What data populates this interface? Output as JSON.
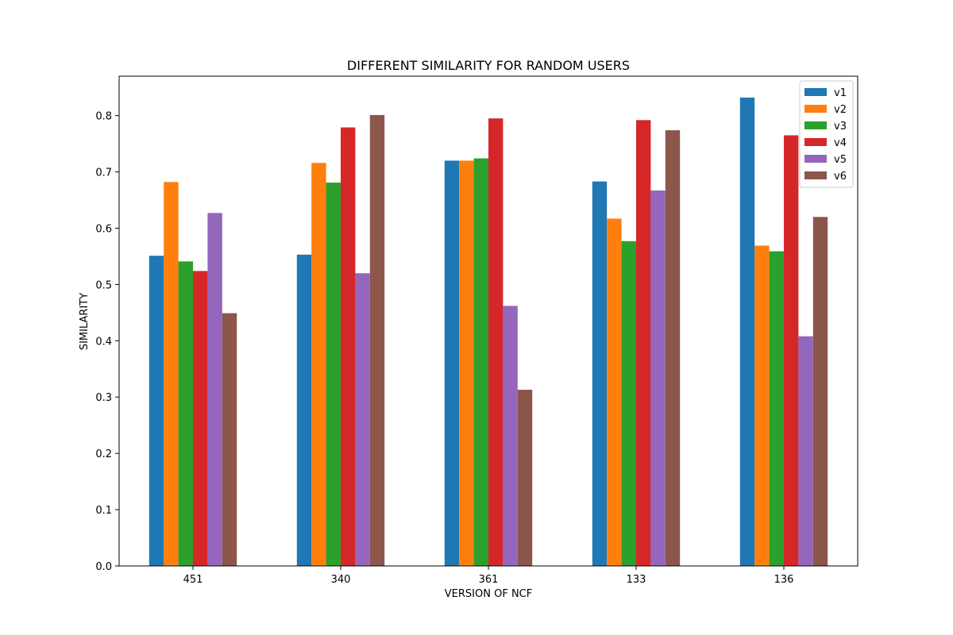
{
  "chart_data": {
    "type": "bar",
    "title": "DIFFERENT SIMILARITY FOR RANDOM USERS",
    "xlabel": "VERSION OF NCF",
    "ylabel": "SIMILARITY",
    "categories": [
      "451",
      "340",
      "361",
      "133",
      "136"
    ],
    "ylim": [
      0,
      0.87
    ],
    "yticks": [
      0.0,
      0.1,
      0.2,
      0.3,
      0.4,
      0.5,
      0.6,
      0.7,
      0.8
    ],
    "grid": false,
    "legend_position": "top-right",
    "series": [
      {
        "name": "v1",
        "color": "#1f77b4",
        "values": [
          0.551,
          0.553,
          0.72,
          0.683,
          0.832
        ]
      },
      {
        "name": "v2",
        "color": "#ff7f0e",
        "values": [
          0.682,
          0.716,
          0.72,
          0.617,
          0.569
        ]
      },
      {
        "name": "v3",
        "color": "#2ca02c",
        "values": [
          0.541,
          0.681,
          0.724,
          0.577,
          0.559
        ]
      },
      {
        "name": "v4",
        "color": "#d62728",
        "values": [
          0.524,
          0.779,
          0.795,
          0.792,
          0.765
        ]
      },
      {
        "name": "v5",
        "color": "#9467bd",
        "values": [
          0.627,
          0.52,
          0.462,
          0.667,
          0.408
        ]
      },
      {
        "name": "v6",
        "color": "#8c564b",
        "values": [
          0.449,
          0.801,
          0.313,
          0.774,
          0.62
        ]
      }
    ]
  }
}
